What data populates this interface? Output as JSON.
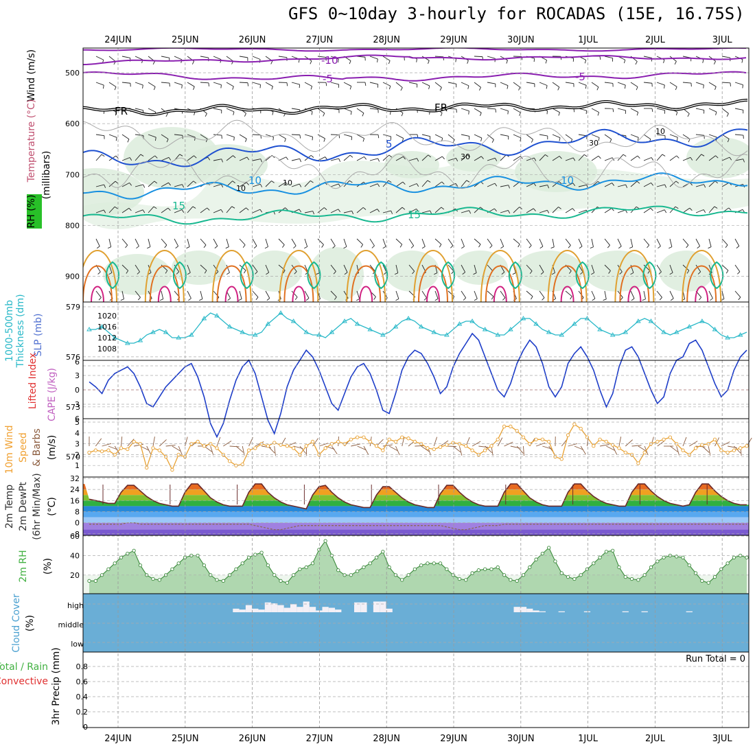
{
  "title": "GFS 0~10day 3-hourly for ROCADAS (15E, 16.75S)",
  "dates": [
    "24JUN",
    "25JUN",
    "26JUN",
    "27JUN",
    "28JUN",
    "29JUN",
    "30JUN",
    "1JUL",
    "2JUL",
    "3JUL"
  ],
  "colors": {
    "temp_cold": "#8a1fb0",
    "freezing": "#000000",
    "temp_5": "#1e50d0",
    "temp_10": "#1890e0",
    "temp_15": "#18b890",
    "rh_fill": "#dcecdc",
    "thickness": "#1c3cc8",
    "slp": "#28b8c8",
    "wind": "#e8a030",
    "rh2m": "#50b050",
    "cloud": "#6aaed6",
    "dewpt_fill": "#a080e0"
  },
  "left_labels": {
    "upper": [
      "Wind (m/s)",
      "Temperature (°C)",
      "RH (%)",
      "(millibars)"
    ],
    "thick_slp": [
      "1000-500mb",
      "Thickness (dm)",
      "SLP (mb)"
    ],
    "stability": [
      "Lifted Index",
      "CAPE (J/kg)"
    ],
    "wind10": [
      "10m Wind",
      "Speed",
      "& Barbs",
      "(m/s)"
    ],
    "temp2m": [
      "2m Temp",
      "2m DewPt",
      "(6hr Min/Max)",
      "(°C)"
    ],
    "rh2m": [
      "2m RH",
      "(%)"
    ],
    "cloud": [
      "Cloud Cover",
      "(%)"
    ],
    "precip": [
      "Total / Rain",
      "Convective",
      "3hr Precip (mm)"
    ]
  },
  "axes": {
    "pressure_ticks": [
      "500",
      "600",
      "700",
      "800",
      "900"
    ],
    "thick_ticks": [
      "579",
      "576",
      "573",
      "570"
    ],
    "slp_ticks": [
      "1020",
      "1016",
      "1012",
      "1008"
    ],
    "li_ticks": [
      "6",
      "3",
      "0",
      "3",
      "6"
    ],
    "wind_ticks": [
      "5",
      "4",
      "3",
      "2",
      "1"
    ],
    "temp_ticks": [
      "32",
      "24",
      "16",
      "8",
      "0",
      "-8"
    ],
    "rh_ticks": [
      "60",
      "40",
      "20"
    ],
    "cloud_ticks": [
      "high",
      "middle",
      "low"
    ],
    "precip_ticks": [
      "0.8",
      "0.6",
      "0.4",
      "0.2",
      "0"
    ]
  },
  "contour_labels": [
    "-10",
    "-5",
    "-5",
    "FR",
    "FR",
    "5",
    "10",
    "10",
    "15",
    "15",
    "10",
    "30",
    "10",
    "10",
    "30"
  ],
  "run_total": "Run Total = 0",
  "chart_data": {
    "type": "line",
    "x_start": "24JUN",
    "step_hours": 3,
    "thickness_dm": [
      574.5,
      574.2,
      573.8,
      574.6,
      575.0,
      575.2,
      575.4,
      575.0,
      574.2,
      573.2,
      573.0,
      573.6,
      574.2,
      574.6,
      575.0,
      575.4,
      575.6,
      574.8,
      573.6,
      572.0,
      571.2,
      572.0,
      573.4,
      574.6,
      575.4,
      575.8,
      575.0,
      573.6,
      572.2,
      571.4,
      572.6,
      574.2,
      575.2,
      575.8,
      576.4,
      576.0,
      575.2,
      574.2,
      573.2,
      572.8,
      573.8,
      574.8,
      575.4,
      575.6,
      575.0,
      574.0,
      572.8,
      572.6,
      573.8,
      575.2,
      576.0,
      576.4,
      576.2,
      575.6,
      574.8,
      573.8,
      574.2,
      575.4,
      576.2,
      576.8,
      577.4,
      577.0,
      576.0,
      575.0,
      574.0,
      573.6,
      574.4,
      575.6,
      576.4,
      577.0,
      576.6,
      575.6,
      574.2,
      573.6,
      574.2,
      575.6,
      576.2,
      576.6,
      576.0,
      575.2,
      574.0,
      573.0,
      573.8,
      575.4,
      576.4,
      576.6,
      576.0,
      575.0,
      574.0,
      573.2,
      573.6,
      575.0,
      575.8,
      576.0,
      576.8,
      577.0,
      576.4,
      575.4,
      574.4,
      573.6,
      574.0,
      575.2,
      576.0,
      576.4
    ],
    "slp_mb": [
      1015,
      1015,
      1016,
      1014,
      1012,
      1011,
      1010,
      1010,
      1011,
      1013,
      1014,
      1015,
      1014,
      1012,
      1012,
      1012,
      1013,
      1016,
      1019,
      1021,
      1020,
      1018,
      1016,
      1015,
      1014,
      1013,
      1013,
      1014,
      1017,
      1019,
      1021,
      1019,
      1018,
      1016,
      1014,
      1013,
      1013,
      1012,
      1014,
      1016,
      1018,
      1019,
      1017,
      1016,
      1015,
      1014,
      1013,
      1014,
      1016,
      1018,
      1019,
      1018,
      1016,
      1015,
      1014,
      1013,
      1013,
      1015,
      1017,
      1018,
      1018,
      1016,
      1015,
      1014,
      1013,
      1013,
      1015,
      1017,
      1019,
      1019,
      1017,
      1015,
      1014,
      1013,
      1013,
      1015,
      1017,
      1019,
      1019,
      1017,
      1015,
      1014,
      1013,
      1013,
      1014,
      1016,
      1018,
      1019,
      1018,
      1016,
      1014,
      1013,
      1014,
      1015,
      1016,
      1017,
      1018,
      1017,
      1015,
      1013,
      1012,
      1012,
      1013,
      1014
    ],
    "wind10_ms": [
      2.2,
      2.4,
      2.3,
      2.4,
      2.0,
      2.6,
      2.5,
      3.2,
      3.0,
      0.8,
      2.6,
      2.4,
      1.8,
      0.6,
      2.0,
      1.8,
      3.0,
      3.2,
      2.8,
      3.0,
      2.6,
      2.0,
      1.4,
      1.0,
      1.1,
      2.4,
      2.6,
      3.0,
      2.8,
      3.1,
      2.9,
      2.8,
      2.6,
      2.0,
      2.8,
      3.2,
      2.0,
      2.6,
      3.0,
      3.2,
      3.0,
      3.4,
      3.6,
      3.6,
      3.2,
      2.8,
      2.4,
      3.4,
      3.2,
      3.6,
      3.5,
      3.2,
      3.0,
      2.6,
      2.5,
      2.7,
      2.9,
      3.1,
      3.0,
      2.8,
      2.4,
      2.0,
      2.4,
      2.8,
      3.4,
      4.6,
      4.6,
      4.2,
      3.6,
      3.0,
      3.4,
      3.4,
      3.2,
      1.8,
      1.6,
      3.8,
      4.8,
      4.4,
      3.6,
      2.8,
      3.4,
      3.2,
      2.9,
      2.6,
      2.2,
      2.0,
      1.2,
      2.2,
      3.0,
      3.2,
      3.4,
      3.6,
      3.0,
      2.4,
      2.0,
      2.6,
      2.9,
      3.0,
      3.4,
      2.4,
      2.2,
      2.4,
      2.6,
      2.8
    ],
    "temp2m_c": [
      17,
      16,
      15,
      14,
      14,
      22,
      27,
      27,
      23,
      19,
      16,
      14,
      13,
      12,
      12,
      22,
      28,
      28,
      23,
      18,
      15,
      13,
      12,
      12,
      12,
      22,
      28,
      28,
      22,
      18,
      15,
      13,
      12,
      11,
      10,
      20,
      26,
      27,
      22,
      18,
      15,
      13,
      12,
      11,
      11,
      20,
      26,
      26,
      22,
      18,
      15,
      13,
      12,
      11,
      11,
      21,
      27,
      27,
      22,
      18,
      15,
      13,
      12,
      12,
      12,
      22,
      28,
      28,
      23,
      18,
      15,
      13,
      12,
      12,
      12,
      22,
      28,
      28,
      23,
      19,
      16,
      14,
      13,
      12,
      12,
      22,
      28,
      28,
      23,
      19,
      16,
      14,
      13,
      12,
      13,
      22,
      28,
      28,
      23,
      19,
      16,
      14,
      13,
      13
    ],
    "dewpt2m_c": [
      -1,
      -1,
      -1,
      -1,
      -1,
      -1,
      0,
      0,
      -1,
      -1,
      -1,
      -1,
      -1,
      -1,
      -1,
      -1,
      -1,
      -1,
      -1,
      -1,
      -1,
      -1,
      -1,
      -1,
      -1,
      -1,
      -2,
      -3,
      -4,
      -5,
      -5,
      -4,
      -3,
      -2,
      -2,
      -2,
      -2,
      -2,
      -2,
      -2,
      -2,
      -2,
      -2,
      -2,
      -2,
      -2,
      -2,
      -2,
      -2,
      -2,
      -2,
      -2,
      -2,
      -2,
      -2,
      -2,
      -3,
      -4,
      -5,
      -5,
      -4,
      -3,
      -2,
      -2,
      -2,
      -1,
      -1,
      -1,
      -1,
      -1,
      -1,
      -1,
      -1,
      -1,
      -1,
      -1,
      -1,
      -1,
      -1,
      -1,
      -1,
      -1,
      -1,
      -1,
      -1,
      -1,
      -1,
      -1,
      -1,
      -1,
      -1,
      -1,
      -1,
      -1,
      -1,
      -1,
      -1,
      -1,
      -1,
      -1,
      -1,
      -1,
      -1,
      -1
    ],
    "rh2m_pct": [
      14,
      14,
      20,
      26,
      32,
      38,
      42,
      45,
      30,
      20,
      16,
      15,
      20,
      26,
      32,
      38,
      40,
      40,
      30,
      20,
      15,
      14,
      20,
      26,
      32,
      38,
      41,
      43,
      30,
      20,
      14,
      12,
      20,
      26,
      28,
      32,
      46,
      55,
      40,
      25,
      20,
      20,
      24,
      28,
      32,
      38,
      44,
      28,
      20,
      15,
      20,
      26,
      30,
      32,
      32,
      32,
      26,
      20,
      16,
      15,
      22,
      25,
      26,
      26,
      28,
      20,
      15,
      14,
      20,
      28,
      36,
      42,
      48,
      34,
      22,
      18,
      16,
      20,
      26,
      32,
      38,
      44,
      45,
      28,
      18,
      16,
      15,
      20,
      28,
      34,
      38,
      40,
      39,
      38,
      30,
      22,
      14,
      12,
      18,
      26,
      32,
      38,
      40,
      38
    ],
    "cloud_high_pct": [
      0,
      0,
      0,
      0,
      0,
      0,
      0,
      0,
      0,
      0,
      0,
      0,
      0,
      0,
      0,
      0,
      0,
      0,
      0,
      0,
      0,
      0,
      0,
      20,
      15,
      40,
      20,
      15,
      55,
      50,
      40,
      25,
      45,
      30,
      60,
      30,
      10,
      30,
      25,
      15,
      0,
      0,
      55,
      55,
      0,
      60,
      60,
      20,
      0,
      0,
      0,
      0,
      0,
      0,
      0,
      0,
      0,
      0,
      0,
      0,
      0,
      0,
      0,
      0,
      0,
      0,
      0,
      30,
      30,
      20,
      10,
      5,
      0,
      0,
      5,
      0,
      0,
      0,
      5,
      0,
      0,
      0,
      0,
      0,
      5,
      0,
      0,
      5,
      0,
      0,
      0,
      0,
      0,
      0,
      5,
      0,
      0,
      0,
      0,
      0,
      0,
      0,
      0,
      0
    ],
    "precip_mm": [
      0,
      0,
      0,
      0,
      0,
      0,
      0,
      0,
      0,
      0
    ]
  }
}
